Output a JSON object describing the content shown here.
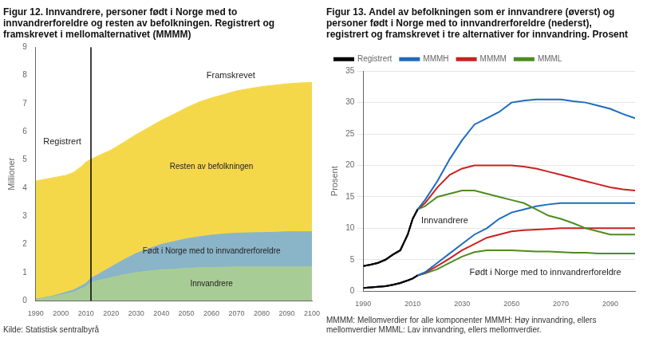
{
  "chart_data": [
    {
      "type": "area",
      "title": "Figur 12. Innvandrere, personer født i Norge med to innvandrerforeldre og resten av befolkningen. Registrert og framskrevet i mellomalternativet (MMMM)",
      "ylabel": "Millioner",
      "source": "Kilde: Statistisk sentralbyrå",
      "stacked": true,
      "grid": "y",
      "xlim": [
        1990,
        2100
      ],
      "ylim": [
        0,
        9
      ],
      "xticks": [
        1990,
        2000,
        2010,
        2020,
        2030,
        2040,
        2050,
        2060,
        2070,
        2080,
        2090,
        2100
      ],
      "yticks": [
        0,
        1,
        2,
        3,
        4,
        5,
        6,
        7,
        8,
        9
      ],
      "vertical_line": 2012,
      "annotations": [
        {
          "text": "Registrert",
          "x": 1993,
          "y": 5.55
        },
        {
          "text": "Framskrevet",
          "x": 2058,
          "y": 7.9
        }
      ],
      "x": [
        1990,
        1993,
        1996,
        1999,
        2002,
        2005,
        2008,
        2010,
        2012,
        2015,
        2020,
        2025,
        2030,
        2035,
        2040,
        2045,
        2050,
        2055,
        2060,
        2065,
        2070,
        2075,
        2080,
        2085,
        2090,
        2095,
        2100
      ],
      "series": [
        {
          "name": "Innvandrere",
          "color": "#a8cc96",
          "values": [
            0.05,
            0.08,
            0.12,
            0.18,
            0.24,
            0.3,
            0.42,
            0.5,
            0.65,
            0.72,
            0.82,
            0.92,
            1.0,
            1.05,
            1.1,
            1.12,
            1.15,
            1.17,
            1.18,
            1.19,
            1.2,
            1.2,
            1.2,
            1.2,
            1.2,
            1.2,
            1.2
          ]
        },
        {
          "name": "Født i Norge med to innvandrerforeldre",
          "color": "#8ab4c8",
          "values": [
            0.01,
            0.02,
            0.03,
            0.04,
            0.06,
            0.08,
            0.1,
            0.12,
            0.15,
            0.22,
            0.38,
            0.53,
            0.68,
            0.8,
            0.9,
            0.98,
            1.05,
            1.1,
            1.15,
            1.18,
            1.2,
            1.21,
            1.22,
            1.23,
            1.25,
            1.25,
            1.25
          ]
        },
        {
          "name": "Resten av befolkningen",
          "color": "#f5d84a",
          "values": [
            4.19,
            4.2,
            4.2,
            4.18,
            4.15,
            4.17,
            4.23,
            4.3,
            4.22,
            4.21,
            4.15,
            4.17,
            4.22,
            4.3,
            4.4,
            4.52,
            4.65,
            4.78,
            4.87,
            4.95,
            5.05,
            5.12,
            5.18,
            5.22,
            5.25,
            5.28,
            5.3
          ]
        }
      ]
    },
    {
      "type": "line",
      "title": "Figur 13. Andel av befolkningen som er innvandrere (øverst) og personer født i Norge med to innvandrerforeldre (nederst), registrert og framskrevet i tre alternativer for innvandring. Prosent",
      "ylabel": "Prosent",
      "footnote": "MMMM: Mellomverdier for alle komponenter MMMH: Høy innvandring, ellers\nmellomverdier MMML: Lav innvandring, ellers mellomverdier.",
      "legend": "upper left",
      "grid": "y",
      "xlim": [
        1990,
        2100
      ],
      "ylim": [
        0,
        35
      ],
      "xticks": [
        1990,
        2010,
        2030,
        2050,
        2070,
        2090
      ],
      "yticks": [
        0,
        5,
        10,
        15,
        20,
        25,
        30,
        35
      ],
      "annotations": [
        {
          "text": "Innvandrere",
          "x": 2013.5,
          "y": 10.8
        },
        {
          "text": "Født i Norge med to innvandrerforeldre",
          "x": 2033,
          "y": 2.5
        }
      ],
      "x": [
        1990,
        1993,
        1996,
        1999,
        2002,
        2005,
        2008,
        2010,
        2012,
        2015,
        2020,
        2025,
        2030,
        2035,
        2040,
        2045,
        2050,
        2055,
        2060,
        2065,
        2070,
        2075,
        2080,
        2085,
        2090,
        2095,
        2100
      ],
      "series": [
        {
          "name": "Registrert",
          "color": "#000000",
          "values": [
            4.0,
            4.2,
            4.5,
            5.0,
            5.8,
            6.5,
            9.0,
            11.5,
            13.0,
            null,
            null,
            null,
            null,
            null,
            null,
            null,
            null,
            null,
            null,
            null,
            null,
            null,
            null,
            null,
            null,
            null,
            null
          ]
        },
        {
          "name": "MMMH",
          "color": "#1e6bbf",
          "values": [
            4.0,
            4.2,
            4.5,
            5.0,
            5.8,
            6.5,
            9.0,
            11.5,
            13.0,
            14.5,
            17.5,
            21.0,
            24.0,
            26.5,
            27.5,
            28.5,
            30.0,
            30.3,
            30.5,
            30.5,
            30.5,
            30.2,
            30.0,
            29.5,
            29.0,
            28.2,
            27.5
          ]
        },
        {
          "name": "MMMM",
          "color": "#cc2020",
          "values": [
            4.0,
            4.2,
            4.5,
            5.0,
            5.8,
            6.5,
            9.0,
            11.5,
            13.0,
            14.0,
            16.5,
            18.5,
            19.5,
            20.0,
            20.0,
            20.0,
            20.0,
            19.8,
            19.5,
            19.0,
            18.5,
            18.0,
            17.5,
            17.0,
            16.5,
            16.2,
            16.0
          ]
        },
        {
          "name": "MMML",
          "color": "#4d8c20",
          "values": [
            4.0,
            4.2,
            4.5,
            5.0,
            5.8,
            6.5,
            9.0,
            11.5,
            13.0,
            13.5,
            15.0,
            15.5,
            16.0,
            16.0,
            15.5,
            15.0,
            14.5,
            14.0,
            13.0,
            12.0,
            11.5,
            10.8,
            10.0,
            9.5,
            9.0,
            9.0,
            9.0
          ]
        },
        {
          "name": "Registrert",
          "color": "#000000",
          "values": [
            0.5,
            0.6,
            0.7,
            0.8,
            1.0,
            1.3,
            1.7,
            2.0,
            2.5,
            null,
            null,
            null,
            null,
            null,
            null,
            null,
            null,
            null,
            null,
            null,
            null,
            null,
            null,
            null,
            null,
            null,
            null
          ]
        },
        {
          "name": "MMMH",
          "color": "#1e6bbf",
          "values": [
            0.5,
            0.6,
            0.7,
            0.8,
            1.0,
            1.3,
            1.7,
            2.0,
            2.5,
            3.0,
            4.5,
            6.0,
            7.5,
            9.0,
            10.0,
            11.5,
            12.5,
            13.0,
            13.5,
            13.8,
            14.0,
            14.0,
            14.0,
            14.0,
            14.0,
            14.0,
            14.0
          ]
        },
        {
          "name": "MMMM",
          "color": "#cc2020",
          "values": [
            0.5,
            0.6,
            0.7,
            0.8,
            1.0,
            1.3,
            1.7,
            2.0,
            2.5,
            2.9,
            4.0,
            5.2,
            6.5,
            7.5,
            8.5,
            9.0,
            9.5,
            9.7,
            9.8,
            9.9,
            10.0,
            10.0,
            10.0,
            10.0,
            10.0,
            10.0,
            10.0
          ]
        },
        {
          "name": "MMML",
          "color": "#4d8c20",
          "values": [
            0.5,
            0.6,
            0.7,
            0.8,
            1.0,
            1.3,
            1.7,
            2.0,
            2.5,
            2.8,
            3.5,
            4.5,
            5.5,
            6.2,
            6.5,
            6.5,
            6.5,
            6.4,
            6.3,
            6.3,
            6.2,
            6.1,
            6.1,
            6.0,
            6.0,
            6.0,
            6.0
          ]
        }
      ]
    }
  ]
}
